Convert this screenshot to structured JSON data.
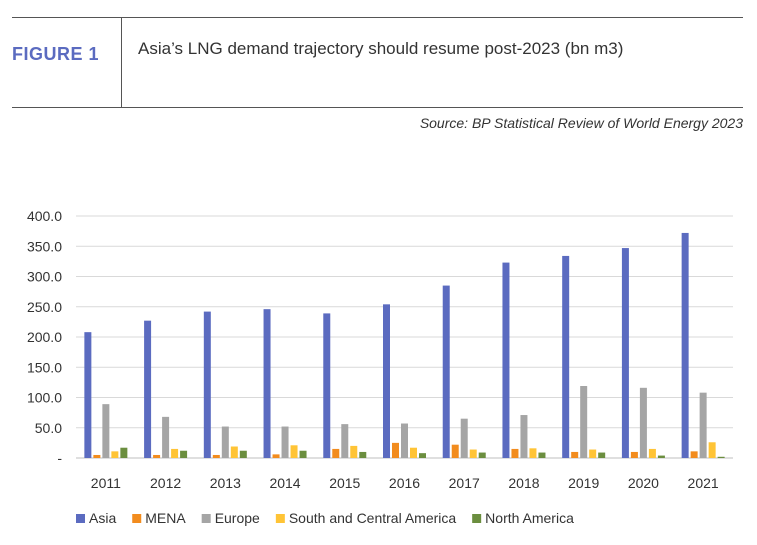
{
  "header": {
    "figure_label": "FIGURE 1",
    "title": "Asia’s LNG demand trajectory should resume post-2023 (bn m3)",
    "source": "Source: BP Statistical Review of World Energy 2023"
  },
  "chart_data": {
    "type": "bar",
    "title": "",
    "xlabel": "",
    "ylabel": "",
    "ylim": [
      0,
      400
    ],
    "y_ticks": [
      0,
      50,
      100,
      150,
      200,
      250,
      300,
      350,
      400
    ],
    "y_tick_labels": [
      "-",
      "50.0",
      "100.0",
      "150.0",
      "200.0",
      "250.0",
      "300.0",
      "350.0",
      "400.0"
    ],
    "grid": true,
    "legend_position": "bottom",
    "categories": [
      "2011",
      "2012",
      "2013",
      "2014",
      "2015",
      "2016",
      "2017",
      "2018",
      "2019",
      "2020",
      "2021"
    ],
    "series": [
      {
        "name": "Asia",
        "color": "#5b6bc0",
        "values": [
          208,
          227,
          242,
          246,
          239,
          254,
          285,
          323,
          334,
          347,
          372
        ]
      },
      {
        "name": "MENA",
        "color": "#f28c1e",
        "values": [
          5,
          5,
          5,
          6,
          15,
          25,
          22,
          15,
          10,
          10,
          11
        ]
      },
      {
        "name": "Europe",
        "color": "#a5a5a5",
        "values": [
          89,
          68,
          52,
          52,
          56,
          57,
          65,
          71,
          119,
          116,
          108
        ]
      },
      {
        "name": "South and Central America",
        "color": "#ffc436",
        "values": [
          11,
          15,
          19,
          21,
          20,
          17,
          14,
          16,
          14,
          15,
          26
        ]
      },
      {
        "name": "North America",
        "color": "#6b8e3f",
        "values": [
          17,
          12,
          12,
          12,
          10,
          8,
          9,
          9,
          9,
          4,
          2
        ]
      }
    ]
  }
}
